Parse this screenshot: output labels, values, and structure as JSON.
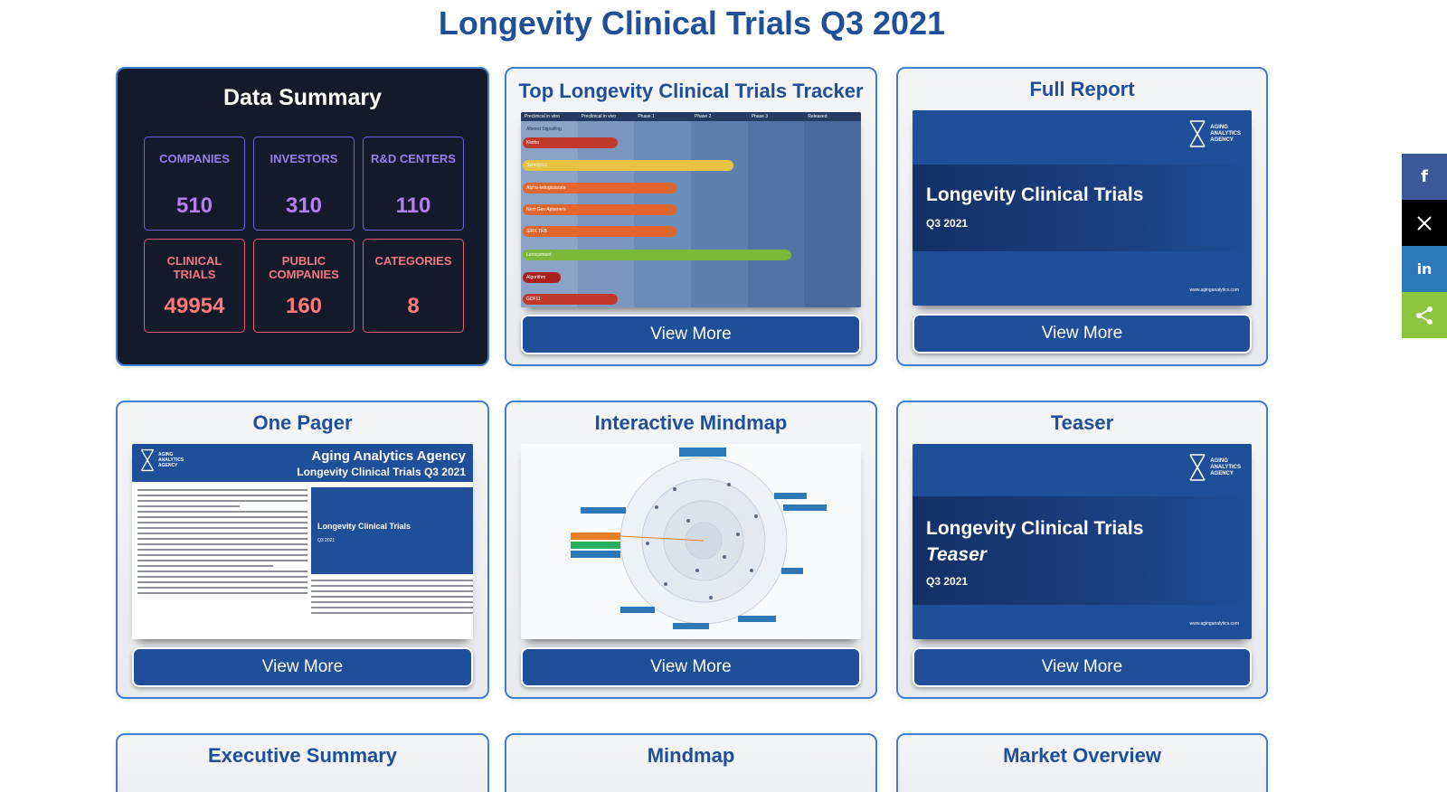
{
  "title": "Longevity Clinical Trials Q3 2021",
  "summary": {
    "title": "Data Summary",
    "stats": [
      {
        "label": "COMPANIES",
        "value": "510"
      },
      {
        "label": "INVESTORS",
        "value": "310"
      },
      {
        "label": "R&D CENTERS",
        "value": "110"
      },
      {
        "label": "CLINICAL TRIALS",
        "value": "49954"
      },
      {
        "label": "PUBLIC COMPANIES",
        "value": "160"
      },
      {
        "label": "CATEGORIES",
        "value": "8"
      }
    ]
  },
  "cards": {
    "tracker": {
      "title": "Top Longevity Clinical Trials Tracker",
      "button": "View More",
      "columns": [
        "Preclinical in vitro",
        "Preclinical in vivo",
        "Phase 1",
        "Phase 2",
        "Phase 3",
        "Released"
      ],
      "alt_label": "Altered Signalling",
      "bars": [
        "Klotho",
        "Senolytics",
        "Alpha-ketoglutarate",
        "Next Gen Aptamers",
        "SIRK TRB",
        "Lenocement",
        "Algorithm",
        "GDF11"
      ]
    },
    "full_report": {
      "title": "Full Report",
      "button": "View More",
      "report_title": "Longevity Clinical Trials",
      "report_sub": "Q3 2021",
      "url": "www.aginganalytics.com"
    },
    "one_pager": {
      "title": "One Pager",
      "button": "View More",
      "header1": "Aging Analytics Agency",
      "header2": "Longevity Clinical Trials Q3 2021",
      "inner_title": "Longevity Clinical Trials",
      "inner_sub": "Q3 2021"
    },
    "mindmap_interactive": {
      "title": "Interactive Mindmap",
      "button": "View More"
    },
    "teaser": {
      "title": "Teaser",
      "button": "View More",
      "report_title": "Longevity Clinical Trials",
      "report_italic": "Teaser",
      "report_sub": "Q3 2021",
      "url": "www.aginganalytics.com"
    },
    "executive": {
      "title": "Executive Summary"
    },
    "mindmap": {
      "title": "Mindmap"
    },
    "market": {
      "title": "Market Overview"
    }
  },
  "logo_text": [
    "AGING",
    "ANALYTICS",
    "AGENCY"
  ],
  "social": [
    {
      "icon": "facebook-icon",
      "glyph": "f",
      "color": "#3b5998"
    },
    {
      "icon": "x-icon",
      "glyph": "𝕏",
      "color": "#000000"
    },
    {
      "icon": "linkedin-icon",
      "glyph": "in",
      "color": "#2e78b7"
    },
    {
      "icon": "share-icon",
      "glyph": "<",
      "color": "#8cc63f"
    }
  ]
}
